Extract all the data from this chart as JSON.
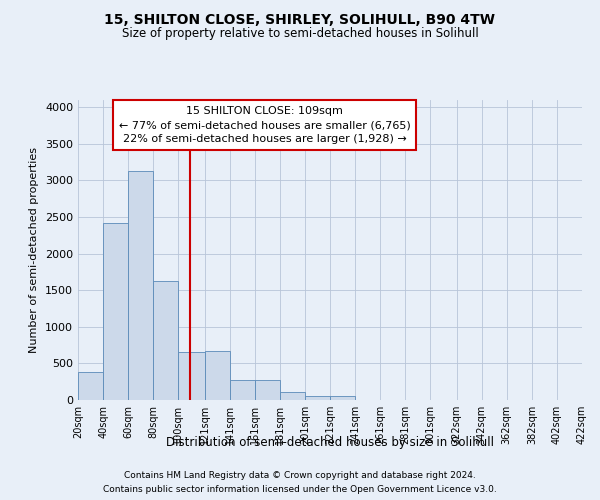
{
  "title1": "15, SHILTON CLOSE, SHIRLEY, SOLIHULL, B90 4TW",
  "title2": "Size of property relative to semi-detached houses in Solihull",
  "xlabel": "Distribution of semi-detached houses by size in Solihull",
  "ylabel": "Number of semi-detached properties",
  "footnote1": "Contains HM Land Registry data © Crown copyright and database right 2024.",
  "footnote2": "Contains public sector information licensed under the Open Government Licence v3.0.",
  "annotation_title": "15 SHILTON CLOSE: 109sqm",
  "annotation_line1": "← 77% of semi-detached houses are smaller (6,765)",
  "annotation_line2": "22% of semi-detached houses are larger (1,928) →",
  "property_size": 109,
  "bar_color": "#ccd9ea",
  "bar_edge_color": "#5a8ab8",
  "marker_line_color": "#cc0000",
  "annotation_box_color": "#ffffff",
  "annotation_box_edge": "#cc0000",
  "background_color": "#e8eff8",
  "categories": [
    "20sqm",
    "40sqm",
    "60sqm",
    "80sqm",
    "100sqm",
    "121sqm",
    "141sqm",
    "161sqm",
    "181sqm",
    "201sqm",
    "221sqm",
    "241sqm",
    "261sqm",
    "281sqm",
    "301sqm",
    "322sqm",
    "342sqm",
    "362sqm",
    "382sqm",
    "402sqm",
    "422sqm"
  ],
  "bin_edges": [
    20,
    40,
    60,
    80,
    100,
    121,
    141,
    161,
    181,
    201,
    221,
    241,
    261,
    281,
    301,
    322,
    342,
    362,
    382,
    402,
    422
  ],
  "bar_heights": [
    380,
    2420,
    3130,
    1620,
    650,
    670,
    270,
    270,
    110,
    60,
    60,
    0,
    0,
    0,
    0,
    0,
    0,
    0,
    0,
    0
  ],
  "ylim": [
    0,
    4100
  ],
  "yticks": [
    0,
    500,
    1000,
    1500,
    2000,
    2500,
    3000,
    3500,
    4000
  ]
}
